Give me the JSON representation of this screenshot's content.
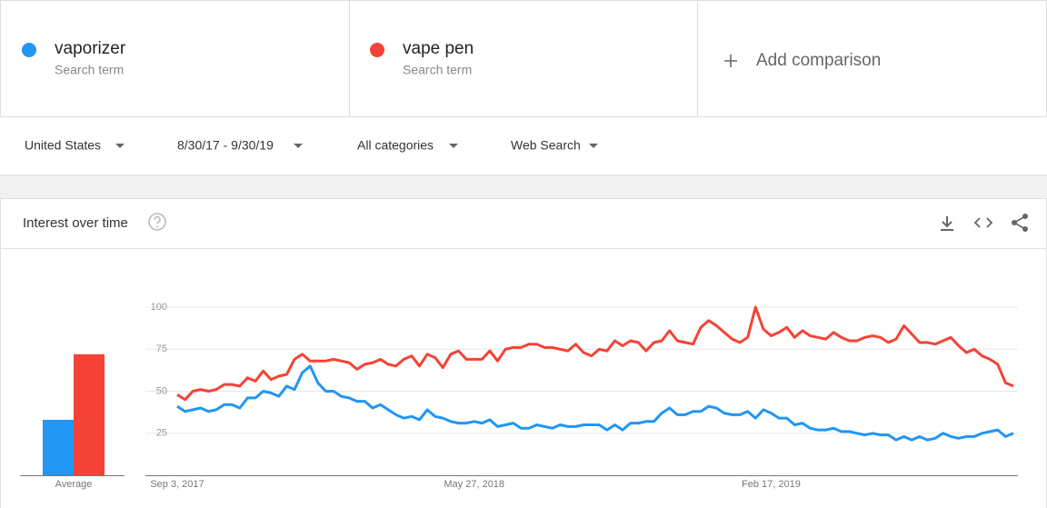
{
  "terms": [
    {
      "name": "vaporizer",
      "subtitle": "Search term"
    },
    {
      "name": "vape pen",
      "subtitle": "Search term"
    }
  ],
  "add_comparison": "Add comparison",
  "filters": [
    "United States",
    "8/30/17 - 9/30/19",
    "All categories",
    "Web Search"
  ],
  "card_title": "Interest over time",
  "chart_data": {
    "type": "line",
    "categories": [
      "Sep 3, 2017",
      null,
      null,
      null,
      null,
      null,
      null,
      null,
      null,
      null,
      null,
      null,
      null,
      null,
      null,
      null,
      null,
      null,
      null,
      null,
      null,
      null,
      null,
      null,
      null,
      null,
      null,
      null,
      null,
      null,
      null,
      null,
      null,
      null,
      null,
      null,
      null,
      null,
      "May 27, 2018",
      null,
      null,
      null,
      null,
      null,
      null,
      null,
      null,
      null,
      null,
      null,
      null,
      null,
      null,
      null,
      null,
      null,
      null,
      null,
      null,
      null,
      null,
      null,
      null,
      null,
      null,
      null,
      null,
      null,
      null,
      null,
      null,
      null,
      null,
      null,
      null,
      null,
      "Feb 17, 2019",
      null,
      null,
      null,
      null,
      null,
      null,
      null,
      null,
      null,
      null,
      null,
      null,
      null,
      null,
      null,
      null,
      null,
      null,
      null,
      null,
      null,
      null,
      null,
      null,
      null,
      null,
      null,
      null,
      null,
      null,
      null
    ],
    "series": [
      {
        "name": "vaporizer",
        "color": "#2196f3",
        "average": 33,
        "values": [
          41,
          38,
          39,
          40,
          38,
          39,
          42,
          42,
          40,
          46,
          46,
          50,
          49,
          47,
          53,
          51,
          61,
          65,
          55,
          50,
          50,
          47,
          46,
          44,
          44,
          40,
          42,
          39,
          36,
          34,
          35,
          33,
          39,
          35,
          34,
          32,
          31,
          31,
          32,
          31,
          33,
          29,
          30,
          31,
          28,
          28,
          30,
          29,
          28,
          30,
          29,
          29,
          30,
          30,
          30,
          27,
          30,
          27,
          31,
          31,
          32,
          32,
          37,
          40,
          36,
          36,
          38,
          38,
          41,
          40,
          37,
          36,
          36,
          38,
          34,
          39,
          37,
          34,
          34,
          30,
          31,
          28,
          27,
          27,
          28,
          26,
          26,
          25,
          24,
          25,
          24,
          24,
          21,
          23,
          21,
          23,
          21,
          22,
          25,
          23,
          22,
          23,
          23,
          25,
          26,
          27,
          23,
          25
        ]
      },
      {
        "name": "vape pen",
        "color": "#f44336",
        "average": 72,
        "values": [
          48,
          45,
          50,
          51,
          50,
          51,
          54,
          54,
          53,
          58,
          56,
          62,
          57,
          59,
          60,
          69,
          72,
          68,
          68,
          68,
          69,
          68,
          67,
          63,
          66,
          67,
          69,
          66,
          65,
          69,
          71,
          65,
          72,
          70,
          64,
          72,
          74,
          69,
          69,
          69,
          74,
          68,
          75,
          76,
          76,
          78,
          78,
          76,
          76,
          75,
          74,
          78,
          73,
          71,
          75,
          74,
          80,
          77,
          80,
          79,
          74,
          79,
          80,
          86,
          80,
          79,
          78,
          88,
          92,
          89,
          85,
          81,
          79,
          82,
          100,
          87,
          83,
          85,
          88,
          82,
          86,
          83,
          82,
          81,
          85,
          82,
          80,
          80,
          82,
          83,
          82,
          79,
          81,
          89,
          84,
          79,
          79,
          78,
          80,
          82,
          77,
          73,
          75,
          71,
          69,
          66,
          55,
          53
        ]
      }
    ],
    "average_label": "Average",
    "ylim": [
      0,
      100
    ],
    "yticks": [
      25,
      50,
      75,
      100
    ],
    "grid": true
  }
}
